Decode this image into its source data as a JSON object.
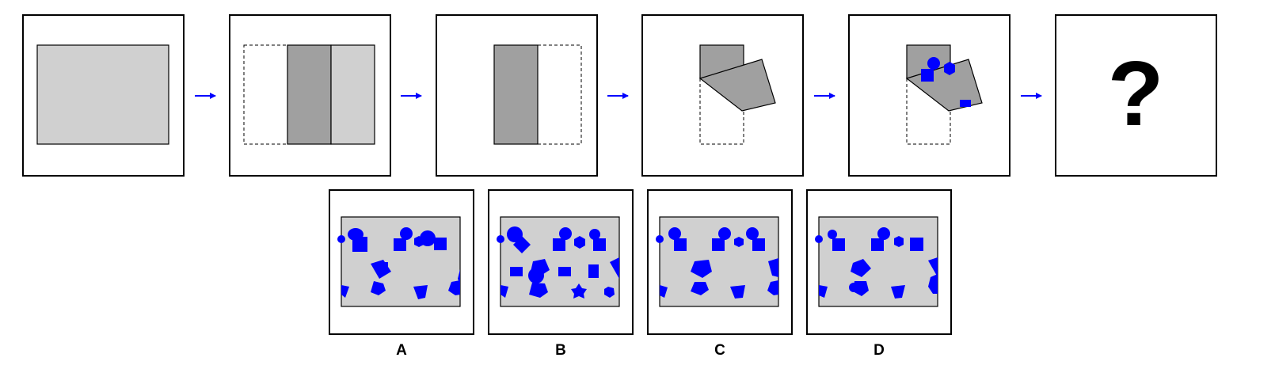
{
  "question_mark": "?",
  "options": [
    {
      "label": "A"
    },
    {
      "label": "B"
    },
    {
      "label": "C"
    },
    {
      "label": "D"
    }
  ],
  "colors": {
    "paper_light": "#d0d0d0",
    "paper_dark": "#a0a0a0",
    "holes": "#0000ff",
    "arrow": "#0000ff",
    "frame": "#000000"
  }
}
